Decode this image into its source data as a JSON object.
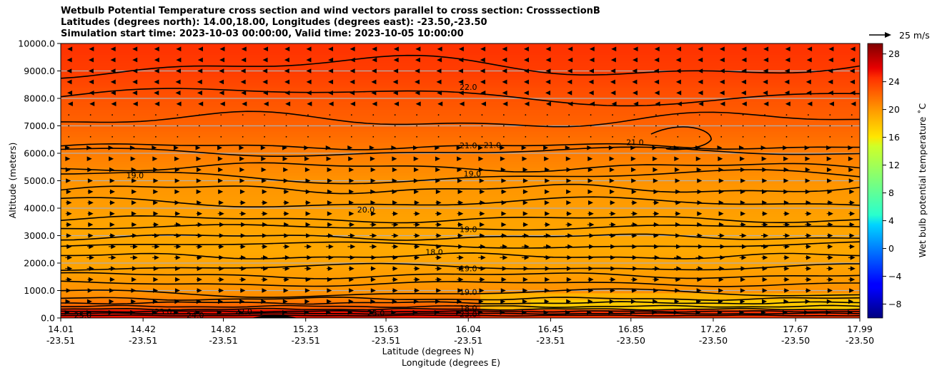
{
  "chart_data": {
    "type": "heatmap",
    "title_lines": [
      "Wetbulb Potential Temperature cross section and wind vectors parallel to cross section: CrosssectionB",
      "Latitudes (degrees north): 14.00,18.00, Longitudes (degrees east): -23.50,-23.50",
      "Simulation start time: 2023-10-03 00:00:00, Valid time: 2023-10-05 10:00:00"
    ],
    "xlabel": "Latitude (degrees N)",
    "xlabel2": "Longitude (degrees E)",
    "ylabel": "Altitude (meters)",
    "colorbar_label": "Wet bulb potential temperature ˚C",
    "x_ticks": [
      {
        "lat": "14.01",
        "lon": "-23.51"
      },
      {
        "lat": "14.42",
        "lon": "-23.51"
      },
      {
        "lat": "14.82",
        "lon": "-23.51"
      },
      {
        "lat": "15.23",
        "lon": "-23.51"
      },
      {
        "lat": "15.63",
        "lon": "-23.51"
      },
      {
        "lat": "16.04",
        "lon": "-23.51"
      },
      {
        "lat": "16.45",
        "lon": "-23.51"
      },
      {
        "lat": "16.85",
        "lon": "-23.50"
      },
      {
        "lat": "17.26",
        "lon": "-23.50"
      },
      {
        "lat": "17.67",
        "lon": "-23.50"
      },
      {
        "lat": "17.99",
        "lon": "-23.50"
      }
    ],
    "xlim": [
      14.01,
      17.99
    ],
    "y_ticks": [
      "0.0",
      "1000.0",
      "2000.0",
      "3000.0",
      "4000.0",
      "5000.0",
      "6000.0",
      "7000.0",
      "8000.0",
      "9000.0",
      "10000.0"
    ],
    "ylim": [
      0,
      10000
    ],
    "grid": "horizontal",
    "colorbar_ticks": [
      "−8",
      "−4",
      "0",
      "4",
      "8",
      "12",
      "16",
      "20",
      "24",
      "28"
    ],
    "colorbar_range": [
      -10,
      29.5
    ],
    "colormap": "jet",
    "quiver_key": "25 m/s",
    "temperature_profile": [
      {
        "alt": 0,
        "t": 25
      },
      {
        "alt": 300,
        "t": 23
      },
      {
        "alt": 800,
        "t": 20.5
      },
      {
        "alt": 1500,
        "t": 19.8
      },
      {
        "alt": 2500,
        "t": 19.2
      },
      {
        "alt": 3500,
        "t": 19.5
      },
      {
        "alt": 5000,
        "t": 20.2
      },
      {
        "alt": 6000,
        "t": 21.2
      },
      {
        "alt": 7000,
        "t": 22.3
      },
      {
        "alt": 8000,
        "t": 23.0
      },
      {
        "alt": 9000,
        "t": 24.0
      },
      {
        "alt": 10000,
        "t": 24.5
      }
    ],
    "cool_layer_north": {
      "lat_start": 16.1,
      "alt_top": 900,
      "t": 17.5
    },
    "contour_labels": [
      {
        "text": "22.0",
        "lat": 16.04,
        "alt": 8420
      },
      {
        "text": "21.0",
        "lat": 16.04,
        "alt": 6280
      },
      {
        "text": "21.0",
        "lat": 16.16,
        "alt": 6300
      },
      {
        "text": "21.0",
        "lat": 16.87,
        "alt": 6400
      },
      {
        "text": "19.0",
        "lat": 14.38,
        "alt": 5200
      },
      {
        "text": "19.0",
        "lat": 16.06,
        "alt": 5260
      },
      {
        "text": "20.0",
        "lat": 15.53,
        "alt": 3950
      },
      {
        "text": "19.0",
        "lat": 16.04,
        "alt": 3240
      },
      {
        "text": "18.0",
        "lat": 15.87,
        "alt": 2400
      },
      {
        "text": "19.0",
        "lat": 16.04,
        "alt": 1810
      },
      {
        "text": "19.0",
        "lat": 16.04,
        "alt": 950
      },
      {
        "text": "25.0",
        "lat": 14.12,
        "alt": 100
      },
      {
        "text": "23.0",
        "lat": 14.52,
        "alt": 230
      },
      {
        "text": "24.0",
        "lat": 14.68,
        "alt": 100
      },
      {
        "text": "22.0",
        "lat": 14.92,
        "alt": 230
      },
      {
        "text": "25.0",
        "lat": 15.58,
        "alt": 180
      },
      {
        "text": "23.0",
        "lat": 16.04,
        "alt": 140
      },
      {
        "text": "18.0",
        "lat": 16.04,
        "alt": 370
      }
    ],
    "wind": {
      "lat_count": 37,
      "altitudes": [
        9800,
        9400,
        9000,
        8600,
        8200,
        7800,
        7400,
        7000,
        6600,
        6200,
        5800,
        5400,
        5000,
        4600,
        4200,
        3800,
        3400,
        3000,
        2600,
        2200,
        1800,
        1400,
        1000,
        600,
        200
      ],
      "u_ms": [
        -2.0,
        -2.2,
        -2.5,
        -2.6,
        -2.4,
        -1.5,
        -0.8,
        0.3,
        0.8,
        1.5,
        2.2,
        2.8,
        3.0,
        3.2,
        3.5,
        3.8,
        4.0,
        4.2,
        4.5,
        4.5,
        4.2,
        3.8,
        3.2,
        2.5,
        1.5
      ]
    }
  }
}
